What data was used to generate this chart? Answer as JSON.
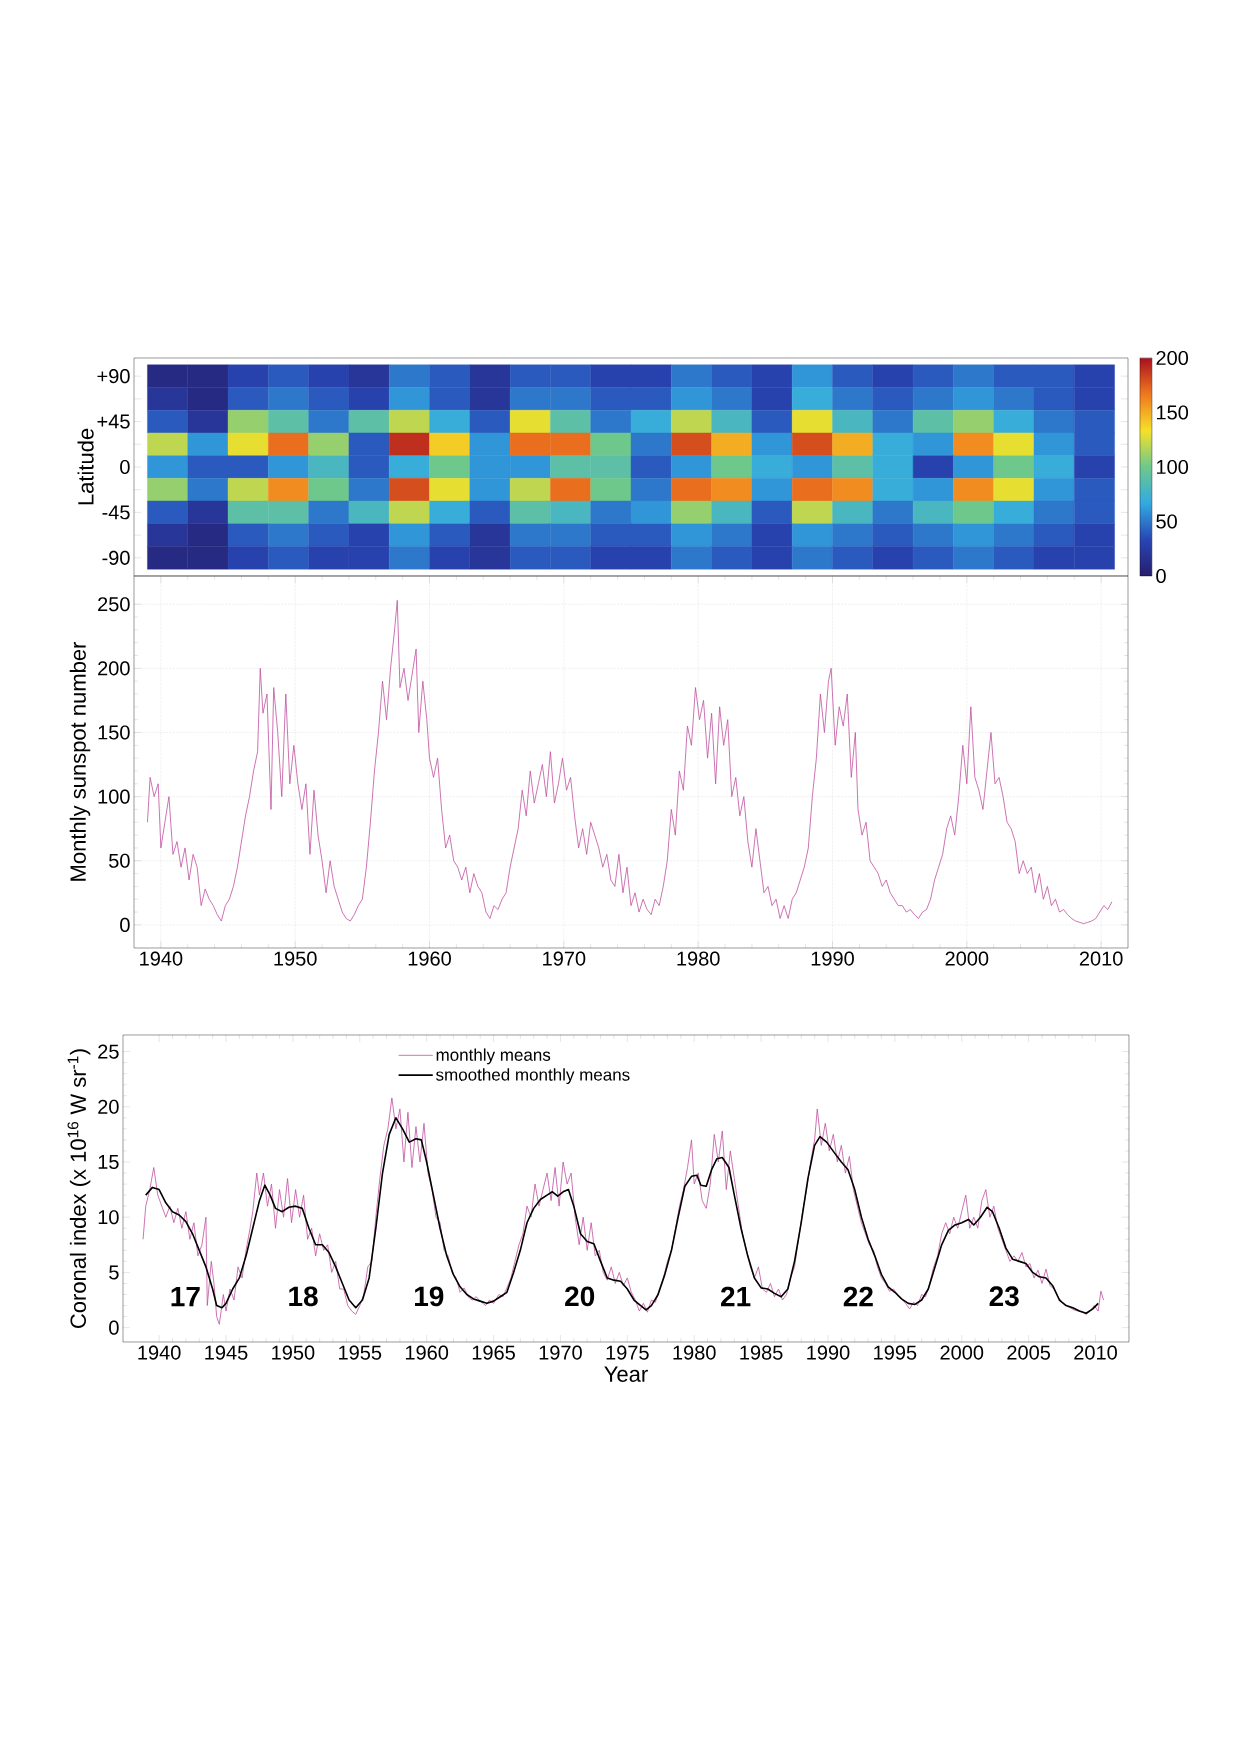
{
  "chart_data": [
    {
      "type": "heatmap",
      "ylabel": "Latitude",
      "categories": [
        null,
        null,
        null,
        null,
        null,
        null,
        null,
        null,
        null,
        null,
        null,
        null,
        null,
        null,
        null,
        null,
        null,
        null,
        null,
        null,
        null,
        null,
        null,
        null
      ],
      "y_categories": [
        "+90",
        null,
        "+45",
        null,
        "0",
        null,
        "-45",
        null,
        "-90"
      ],
      "cells": [
        [
          10,
          10,
          30,
          40,
          30,
          20,
          50,
          40,
          20,
          40,
          40,
          30,
          30,
          50,
          40,
          30,
          60,
          40,
          30,
          40,
          50,
          40,
          40,
          30
        ],
        [
          20,
          10,
          40,
          50,
          40,
          30,
          60,
          40,
          20,
          50,
          50,
          40,
          40,
          60,
          50,
          30,
          70,
          50,
          40,
          50,
          60,
          50,
          40,
          30
        ],
        [
          40,
          20,
          110,
          90,
          50,
          90,
          120,
          70,
          40,
          130,
          90,
          50,
          70,
          120,
          80,
          40,
          130,
          80,
          50,
          90,
          110,
          70,
          50,
          40
        ],
        [
          120,
          60,
          130,
          170,
          110,
          40,
          190,
          140,
          60,
          170,
          170,
          100,
          50,
          180,
          150,
          60,
          180,
          150,
          70,
          60,
          160,
          130,
          60,
          40
        ],
        [
          60,
          40,
          40,
          60,
          80,
          40,
          70,
          100,
          60,
          60,
          90,
          90,
          40,
          60,
          100,
          70,
          60,
          90,
          70,
          30,
          60,
          100,
          70,
          30
        ],
        [
          110,
          50,
          120,
          160,
          100,
          50,
          180,
          130,
          60,
          120,
          170,
          100,
          50,
          170,
          160,
          60,
          170,
          160,
          70,
          60,
          160,
          130,
          60,
          40
        ],
        [
          40,
          20,
          90,
          90,
          50,
          80,
          120,
          70,
          40,
          90,
          80,
          50,
          60,
          110,
          80,
          40,
          120,
          80,
          50,
          80,
          100,
          70,
          50,
          40
        ],
        [
          20,
          10,
          40,
          50,
          40,
          30,
          60,
          40,
          20,
          50,
          50,
          40,
          40,
          60,
          50,
          30,
          60,
          50,
          40,
          50,
          60,
          50,
          40,
          30
        ],
        [
          10,
          10,
          30,
          40,
          30,
          30,
          50,
          30,
          20,
          40,
          40,
          30,
          30,
          50,
          40,
          30,
          50,
          40,
          30,
          40,
          50,
          40,
          30,
          30
        ]
      ],
      "clim": [
        0,
        200
      ],
      "cticks": [
        0,
        50,
        100,
        150,
        200
      ],
      "tick_labels": "y"
    },
    {
      "type": "line",
      "ylabel": "Monthly sunspot number",
      "color": "#c050a0",
      "grid": true,
      "x": [
        1939.0,
        1939.2,
        1939.5,
        1939.8,
        1940.0,
        1940.3,
        1940.6,
        1940.9,
        1941.2,
        1941.5,
        1941.8,
        1942.1,
        1942.4,
        1942.7,
        1943.0,
        1943.3,
        1943.6,
        1943.9,
        1944.2,
        1944.5,
        1944.8,
        1945.1,
        1945.4,
        1945.7,
        1946.0,
        1946.3,
        1946.6,
        1946.9,
        1947.2,
        1947.4,
        1947.6,
        1947.9,
        1948.2,
        1948.4,
        1948.7,
        1949.0,
        1949.3,
        1949.6,
        1949.9,
        1950.2,
        1950.5,
        1950.8,
        1951.1,
        1951.4,
        1951.7,
        1952.0,
        1952.3,
        1952.6,
        1952.9,
        1953.2,
        1953.5,
        1953.8,
        1954.1,
        1954.4,
        1954.7,
        1955.0,
        1955.3,
        1955.6,
        1955.9,
        1956.2,
        1956.5,
        1956.8,
        1957.1,
        1957.4,
        1957.6,
        1957.8,
        1958.1,
        1958.4,
        1958.7,
        1959.0,
        1959.2,
        1959.5,
        1959.8,
        1960.0,
        1960.3,
        1960.6,
        1960.9,
        1961.2,
        1961.5,
        1961.8,
        1962.1,
        1962.4,
        1962.7,
        1963.0,
        1963.3,
        1963.6,
        1963.9,
        1964.2,
        1964.5,
        1964.8,
        1965.1,
        1965.4,
        1965.7,
        1966.0,
        1966.3,
        1966.6,
        1966.9,
        1967.2,
        1967.5,
        1967.8,
        1968.1,
        1968.4,
        1968.7,
        1969.0,
        1969.3,
        1969.6,
        1969.9,
        1970.2,
        1970.5,
        1970.8,
        1971.1,
        1971.4,
        1971.7,
        1972.0,
        1972.3,
        1972.6,
        1972.9,
        1973.2,
        1973.5,
        1973.8,
        1974.1,
        1974.4,
        1974.7,
        1975.0,
        1975.3,
        1975.6,
        1975.9,
        1976.2,
        1976.5,
        1976.8,
        1977.1,
        1977.4,
        1977.7,
        1978.0,
        1978.3,
        1978.6,
        1978.9,
        1979.2,
        1979.5,
        1979.8,
        1980.1,
        1980.4,
        1980.7,
        1981.0,
        1981.3,
        1981.6,
        1981.9,
        1982.2,
        1982.5,
        1982.8,
        1983.1,
        1983.4,
        1983.7,
        1984.0,
        1984.3,
        1984.6,
        1984.9,
        1985.2,
        1985.5,
        1985.8,
        1986.1,
        1986.4,
        1986.7,
        1987.0,
        1987.3,
        1987.6,
        1987.9,
        1988.2,
        1988.5,
        1988.8,
        1989.1,
        1989.4,
        1989.7,
        1989.9,
        1990.2,
        1990.5,
        1990.8,
        1991.1,
        1991.4,
        1991.7,
        1991.9,
        1992.2,
        1992.5,
        1992.8,
        1993.1,
        1993.4,
        1993.7,
        1994.0,
        1994.3,
        1994.6,
        1994.9,
        1995.2,
        1995.5,
        1995.8,
        1996.1,
        1996.4,
        1996.7,
        1997.0,
        1997.3,
        1997.6,
        1997.9,
        1998.2,
        1998.5,
        1998.8,
        1999.1,
        1999.4,
        1999.7,
        2000.0,
        2000.3,
        2000.6,
        2000.9,
        2001.2,
        2001.5,
        2001.8,
        2002.1,
        2002.4,
        2002.7,
        2003.0,
        2003.3,
        2003.6,
        2003.9,
        2004.2,
        2004.5,
        2004.8,
        2005.1,
        2005.4,
        2005.7,
        2006.0,
        2006.3,
        2006.6,
        2006.9,
        2007.2,
        2007.5,
        2007.8,
        2008.1,
        2008.4,
        2008.7,
        2009.0,
        2009.3,
        2009.6,
        2009.9,
        2010.2,
        2010.5,
        2010.8
      ],
      "values": [
        80,
        115,
        100,
        110,
        60,
        80,
        100,
        55,
        65,
        45,
        60,
        35,
        55,
        45,
        15,
        28,
        20,
        15,
        8,
        3,
        15,
        20,
        30,
        45,
        65,
        85,
        100,
        120,
        135,
        200,
        165,
        180,
        90,
        185,
        150,
        100,
        180,
        110,
        140,
        110,
        90,
        110,
        55,
        105,
        70,
        50,
        25,
        50,
        30,
        20,
        10,
        5,
        3,
        8,
        15,
        20,
        45,
        80,
        120,
        150,
        190,
        160,
        200,
        230,
        253,
        185,
        200,
        175,
        195,
        215,
        150,
        190,
        160,
        130,
        115,
        130,
        90,
        60,
        70,
        50,
        45,
        35,
        45,
        25,
        40,
        30,
        25,
        10,
        5,
        15,
        12,
        20,
        25,
        45,
        60,
        75,
        105,
        85,
        120,
        95,
        110,
        125,
        100,
        135,
        95,
        110,
        130,
        105,
        115,
        85,
        60,
        75,
        55,
        80,
        70,
        60,
        45,
        55,
        35,
        30,
        55,
        25,
        45,
        15,
        25,
        10,
        20,
        12,
        8,
        20,
        15,
        30,
        50,
        90,
        70,
        120,
        105,
        155,
        140,
        185,
        160,
        175,
        130,
        165,
        110,
        170,
        140,
        160,
        100,
        115,
        85,
        100,
        65,
        45,
        75,
        50,
        25,
        30,
        15,
        20,
        5,
        15,
        5,
        20,
        25,
        35,
        45,
        60,
        100,
        130,
        180,
        150,
        190,
        200,
        140,
        170,
        155,
        180,
        115,
        150,
        90,
        70,
        80,
        50,
        45,
        40,
        30,
        35,
        25,
        20,
        15,
        15,
        10,
        12,
        8,
        5,
        10,
        12,
        20,
        35,
        45,
        55,
        75,
        85,
        70,
        100,
        140,
        110,
        170,
        115,
        105,
        90,
        120,
        150,
        110,
        115,
        100,
        80,
        75,
        65,
        40,
        50,
        40,
        45,
        25,
        40,
        20,
        30,
        15,
        20,
        10,
        12,
        8,
        5,
        3,
        2,
        1,
        2,
        3,
        5,
        10,
        15,
        12,
        18
      ],
      "xlim": [
        1938,
        2012
      ],
      "xticks": [
        1940,
        1950,
        1960,
        1970,
        1980,
        1990,
        2000,
        2010
      ],
      "ylim": [
        -18,
        272
      ],
      "yticks": [
        0,
        50,
        100,
        150,
        200,
        250
      ]
    },
    {
      "type": "line",
      "xlabel": "Year",
      "ylabel": "Coronal index (x 10$^{16}$ W sr$^{-1}$)",
      "legend": "top",
      "series": [
        {
          "name": "monthly means",
          "color": "#c050a0",
          "x": [
            1938.8,
            1939.0,
            1939.3,
            1939.6,
            1939.9,
            1940.2,
            1940.5,
            1940.8,
            1941.1,
            1941.4,
            1941.7,
            1942.0,
            1942.3,
            1942.6,
            1942.9,
            1943.2,
            1943.5,
            1943.6,
            1943.9,
            1944.1,
            1944.3,
            1944.5,
            1944.8,
            1945.0,
            1945.3,
            1945.6,
            1945.9,
            1946.2,
            1946.5,
            1946.8,
            1947.0,
            1947.3,
            1947.5,
            1947.8,
            1948.1,
            1948.4,
            1948.7,
            1949.0,
            1949.3,
            1949.6,
            1949.9,
            1950.2,
            1950.5,
            1950.8,
            1951.1,
            1951.4,
            1951.7,
            1952.0,
            1952.3,
            1952.6,
            1952.9,
            1953.2,
            1953.5,
            1953.8,
            1954.1,
            1954.4,
            1954.7,
            1955.0,
            1955.3,
            1955.6,
            1955.9,
            1956.2,
            1956.5,
            1956.8,
            1957.1,
            1957.4,
            1957.7,
            1958.0,
            1958.3,
            1958.6,
            1958.9,
            1959.2,
            1959.5,
            1959.8,
            1960.1,
            1960.4,
            1960.7,
            1961.0,
            1961.3,
            1961.6,
            1961.9,
            1962.2,
            1962.5,
            1962.8,
            1963.1,
            1963.4,
            1963.7,
            1964.0,
            1964.4,
            1964.7,
            1965.0,
            1965.4,
            1965.7,
            1966.0,
            1966.3,
            1966.6,
            1966.9,
            1967.2,
            1967.5,
            1967.8,
            1968.1,
            1968.4,
            1968.7,
            1969.0,
            1969.3,
            1969.6,
            1969.9,
            1970.2,
            1970.5,
            1970.8,
            1971.1,
            1971.4,
            1971.7,
            1972.0,
            1972.3,
            1972.6,
            1972.9,
            1973.2,
            1973.5,
            1973.8,
            1974.1,
            1974.4,
            1974.7,
            1975.0,
            1975.3,
            1975.6,
            1975.9,
            1976.2,
            1976.5,
            1976.8,
            1977.1,
            1977.4,
            1977.7,
            1978.0,
            1978.3,
            1978.6,
            1978.9,
            1979.2,
            1979.5,
            1979.8,
            1980.0,
            1980.3,
            1980.6,
            1980.9,
            1981.2,
            1981.5,
            1981.8,
            1982.1,
            1982.4,
            1982.7,
            1983.0,
            1983.3,
            1983.6,
            1983.9,
            1984.2,
            1984.5,
            1984.8,
            1985.1,
            1985.4,
            1985.7,
            1986.0,
            1986.3,
            1986.6,
            1986.9,
            1987.2,
            1987.5,
            1987.8,
            1988.1,
            1988.4,
            1988.7,
            1989.0,
            1989.2,
            1989.5,
            1989.8,
            1990.1,
            1990.4,
            1990.7,
            1991.0,
            1991.3,
            1991.6,
            1991.9,
            1992.2,
            1992.5,
            1992.8,
            1993.1,
            1993.4,
            1993.7,
            1994.0,
            1994.3,
            1994.6,
            1994.9,
            1995.2,
            1995.5,
            1995.8,
            1996.1,
            1996.4,
            1996.7,
            1997.0,
            1997.3,
            1997.6,
            1997.9,
            1998.2,
            1998.5,
            1998.8,
            1999.1,
            1999.4,
            1999.7,
            2000.0,
            2000.3,
            2000.6,
            2000.9,
            2001.2,
            2001.5,
            2001.8,
            2002.1,
            2002.4,
            2002.7,
            2003.0,
            2003.3,
            2003.6,
            2003.9,
            2004.2,
            2004.5,
            2004.8,
            2005.1,
            2005.4,
            2005.7,
            2006.0,
            2006.3,
            2006.6,
            2006.9,
            2007.2,
            2007.5,
            2007.8,
            2008.1,
            2008.4,
            2008.7,
            2009.0,
            2009.3,
            2009.6,
            2009.9,
            2010.2,
            2010.4,
            2010.6
          ],
          "values": [
            8,
            11,
            12.5,
            14.5,
            12,
            11,
            10,
            11,
            9.5,
            10.8,
            9,
            10.5,
            8,
            9.5,
            6.5,
            7.5,
            10,
            2,
            6,
            4,
            1,
            0.3,
            3,
            1.5,
            3.5,
            2.5,
            5.5,
            4.5,
            7,
            9,
            10.5,
            14,
            12,
            14,
            11,
            13,
            9,
            12.5,
            10,
            13.5,
            9.5,
            12.5,
            10,
            12,
            8,
            9,
            6.5,
            8.5,
            7,
            7.5,
            5,
            6,
            3.5,
            3.5,
            2,
            1.5,
            1.2,
            2,
            3,
            5.5,
            6,
            10,
            13.5,
            16.5,
            18,
            20.8,
            18,
            19.8,
            15,
            19.5,
            14.5,
            18.2,
            15,
            18.5,
            14,
            12.5,
            10,
            9.5,
            7,
            6.5,
            5,
            4.5,
            3.2,
            3.6,
            2.8,
            2.5,
            2.8,
            2.4,
            2.0,
            2.5,
            2.2,
            3.0,
            2.8,
            3.6,
            4.5,
            6,
            7.5,
            8.5,
            11,
            10,
            13,
            11,
            12.5,
            14,
            11.5,
            14.5,
            11,
            15,
            13,
            14,
            10,
            7.5,
            10,
            7,
            9.5,
            6.5,
            7,
            5,
            4.3,
            5.5,
            4,
            5,
            3.8,
            4.5,
            3.2,
            2.5,
            1.5,
            2.2,
            1.4,
            2.5,
            2.3,
            3.5,
            4.5,
            6,
            7,
            9,
            11,
            12.5,
            14.5,
            17,
            13,
            14,
            11.5,
            10.8,
            13,
            17.5,
            15,
            17.8,
            12.5,
            16,
            13.5,
            11,
            8.5,
            7,
            5.5,
            4.5,
            5.5,
            3.5,
            3.2,
            4,
            2.8,
            3.5,
            2.5,
            3,
            4.5,
            5.5,
            8,
            10.5,
            12.5,
            15,
            17,
            19.8,
            16.5,
            18.5,
            16,
            17.5,
            15,
            16.5,
            14,
            15.5,
            12.5,
            11,
            9.5,
            8.5,
            7.5,
            7,
            5.5,
            4.5,
            4,
            3.3,
            3.5,
            3,
            2.6,
            2.2,
            1.7,
            2.3,
            2,
            3,
            2.8,
            4,
            5.5,
            6.5,
            8.5,
            9.5,
            8.5,
            10,
            9,
            10.5,
            12,
            9,
            10,
            9,
            11.5,
            12.5,
            10,
            11,
            9,
            8,
            7,
            6,
            6.5,
            6,
            6.8,
            5.5,
            5.8,
            4.5,
            5.2,
            4,
            5.3,
            3.8,
            3.5,
            2.8,
            2.3,
            2.0,
            1.8,
            1.6,
            1.5,
            1.4,
            1.2,
            1.5,
            2.0,
            1.5,
            3.3,
            2.5
          ]
        },
        {
          "name": "smoothed monthly means",
          "color": "#000000",
          "x": [
            1939.0,
            1939.5,
            1940.0,
            1940.5,
            1941.0,
            1941.5,
            1942.0,
            1942.5,
            1943.0,
            1943.5,
            1944.0,
            1944.3,
            1944.7,
            1945.0,
            1945.5,
            1946.0,
            1946.5,
            1947.0,
            1947.5,
            1947.9,
            1948.3,
            1948.7,
            1949.2,
            1949.7,
            1950.2,
            1950.7,
            1951.2,
            1951.7,
            1952.2,
            1952.7,
            1953.2,
            1953.7,
            1954.2,
            1954.7,
            1955.2,
            1955.7,
            1956.2,
            1956.7,
            1957.2,
            1957.7,
            1958.2,
            1958.7,
            1959.2,
            1959.6,
            1960.0,
            1960.5,
            1961.0,
            1961.5,
            1962.0,
            1962.5,
            1963.0,
            1963.5,
            1964.0,
            1964.5,
            1965.0,
            1965.5,
            1966.0,
            1966.5,
            1967.0,
            1967.5,
            1968.0,
            1968.5,
            1969.0,
            1969.4,
            1969.8,
            1970.2,
            1970.6,
            1971.0,
            1971.5,
            1972.0,
            1972.5,
            1973.0,
            1973.5,
            1974.0,
            1974.5,
            1975.0,
            1975.5,
            1976.0,
            1976.4,
            1976.8,
            1977.3,
            1977.8,
            1978.3,
            1978.8,
            1979.3,
            1979.8,
            1980.2,
            1980.5,
            1980.9,
            1981.3,
            1981.7,
            1982.1,
            1982.6,
            1983.0,
            1983.5,
            1984.0,
            1984.5,
            1985.0,
            1985.5,
            1986.0,
            1986.5,
            1987.0,
            1987.5,
            1988.0,
            1988.5,
            1989.0,
            1989.4,
            1989.9,
            1990.5,
            1991.0,
            1991.5,
            1992.0,
            1992.5,
            1993.0,
            1993.5,
            1994.0,
            1994.5,
            1995.0,
            1995.5,
            1996.0,
            1996.5,
            1997.0,
            1997.5,
            1998.0,
            1998.5,
            1999.0,
            1999.5,
            2000.0,
            2000.5,
            2000.9,
            2001.4,
            2001.9,
            2002.3,
            2002.8,
            2003.3,
            2003.8,
            2004.3,
            2004.8,
            2005.3,
            2005.8,
            2006.3,
            2006.8,
            2007.3,
            2007.8,
            2008.3,
            2008.8,
            2009.3,
            2009.8,
            2010.2
          ],
          "values": [
            12,
            12.7,
            12.5,
            11.3,
            10.5,
            10.2,
            9.6,
            8.5,
            7,
            5.5,
            3.5,
            2,
            1.8,
            2.2,
            3.5,
            4.5,
            6.5,
            9,
            11.5,
            12.9,
            12,
            10.8,
            10.5,
            10.9,
            11,
            10.8,
            9,
            7.5,
            7.5,
            6.8,
            5.5,
            4,
            2.5,
            1.8,
            2.5,
            4.5,
            9,
            14,
            17.5,
            19,
            18,
            16.8,
            17.1,
            17,
            15,
            12,
            9,
            6.5,
            4.8,
            3.7,
            3,
            2.6,
            2.4,
            2.2,
            2.4,
            2.8,
            3.2,
            5,
            7,
            9.5,
            10.8,
            11.6,
            12,
            12.3,
            11.9,
            12.3,
            12.5,
            11,
            8.5,
            7.8,
            7.6,
            6,
            4.5,
            4.3,
            4.2,
            3.5,
            2.5,
            2,
            1.6,
            2.0,
            3,
            4.8,
            7,
            10,
            12.8,
            13.7,
            13.8,
            12.9,
            12.8,
            14.3,
            15.3,
            15.4,
            14.5,
            12,
            9,
            6.5,
            4.5,
            3.6,
            3.5,
            3.1,
            2.8,
            3.5,
            6,
            9.5,
            13.5,
            16.5,
            17.3,
            16.8,
            15.8,
            15.0,
            14.3,
            12.5,
            10,
            8,
            6.5,
            4.8,
            3.7,
            3.2,
            2.6,
            2.2,
            2.1,
            2.5,
            3.5,
            5.5,
            7.5,
            8.8,
            9.3,
            9.5,
            9.8,
            9.3,
            10.0,
            10.9,
            10.5,
            9,
            7.2,
            6.2,
            6.0,
            5.8,
            5.0,
            4.6,
            4.5,
            3.8,
            2.5,
            2.0,
            1.8,
            1.5,
            1.3,
            1.7,
            2.2
          ]
        }
      ],
      "xlim": [
        1937.3,
        2012.5
      ],
      "xticks": [
        1940,
        1945,
        1950,
        1955,
        1960,
        1965,
        1970,
        1975,
        1980,
        1985,
        1990,
        1995,
        2000,
        2005,
        2010
      ],
      "ylim": [
        -1.3,
        26.5
      ],
      "yticks": [
        0,
        5,
        10,
        15,
        20,
        25
      ],
      "annotations": [
        "17",
        "18",
        "19",
        "20",
        "21",
        "22",
        "23"
      ]
    }
  ]
}
